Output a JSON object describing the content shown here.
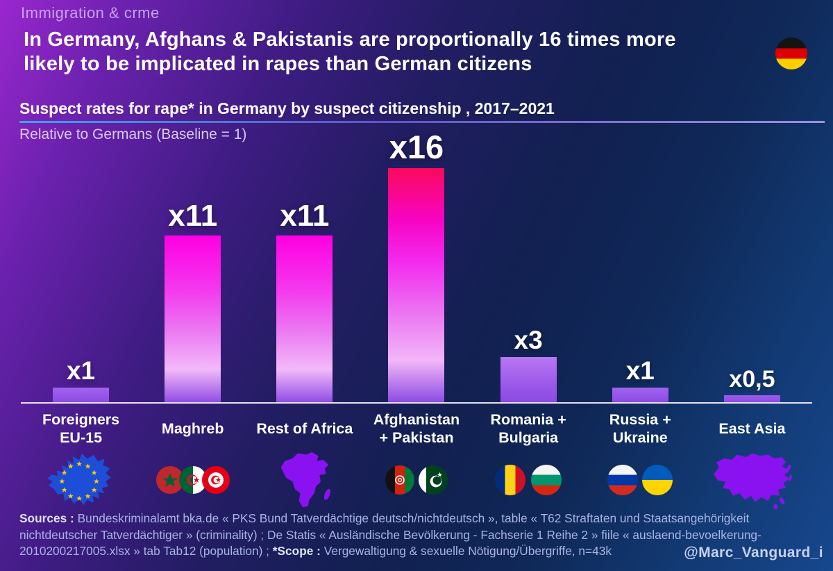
{
  "header": {
    "eyebrow": "Immigration & crme",
    "title_lines": [
      "In Germany, Afghans & Pakistanis are proportionally 16 times more",
      "likely to be implicated in rapes than German citizens"
    ],
    "subtitle": "Suspect rates for rape* in Germany by suspect citizenship , 2017–2021",
    "unit_note": "Relative to Germans (Baseline = 1)",
    "country_icon": "germany-flag-icon"
  },
  "chart_data": {
    "type": "bar",
    "title": "Suspect rates for rape* in Germany by suspect citizenship , 2017–2021",
    "ylabel": "Relative to Germans (Baseline = 1)",
    "baseline": 1,
    "ylim": [
      0,
      16
    ],
    "grid": false,
    "legend": false,
    "categories": [
      "Foreigners EU-15",
      "Maghreb",
      "Rest of Africa",
      "Afghanistan + Pakistan",
      "Romania + Bulgaria",
      "Russia + Ukraine",
      "East Asia"
    ],
    "values": [
      1,
      11,
      11,
      16,
      3,
      1,
      0.5
    ],
    "value_labels": [
      "x1",
      "x11",
      "x11",
      "x16",
      "x3",
      "x1",
      "x0,5"
    ],
    "bar_color_scale": {
      "high": "#fb0a5c",
      "mid": "#f803c8",
      "low": "#8a4ae2"
    },
    "columns": [
      {
        "category_lines": [
          "Foreigners",
          "EU-15"
        ],
        "value": 1,
        "value_label": "x1",
        "bar_gradient": [
          "#a263f0 0%",
          "#8a4ae2 100%"
        ],
        "icons": [
          "eu-map-icon"
        ]
      },
      {
        "category_lines": [
          "Maghreb",
          ""
        ],
        "value": 11,
        "value_label": "x11",
        "bar_gradient": [
          "#fe00e2 0%",
          "#f437ee 32%",
          "#eb7cf2 58%",
          "#f3b9f9 80%",
          "#8f4be4 100%"
        ],
        "icons": [
          "morocco-flag-icon",
          "algeria-flag-icon",
          "tunisia-flag-icon"
        ]
      },
      {
        "category_lines": [
          "Rest of Africa",
          ""
        ],
        "value": 11,
        "value_label": "x11",
        "bar_gradient": [
          "#fe00e2 0%",
          "#f437ee 32%",
          "#eb7cf2 58%",
          "#f3b9f9 80%",
          "#8f4be4 100%"
        ],
        "icons": [
          "africa-map-icon"
        ]
      },
      {
        "category_lines": [
          "Afghanistan",
          "+ Pakistan"
        ],
        "value": 16,
        "value_label": "x16",
        "bar_gradient": [
          "#fb0a5c 0%",
          "#f704c4 22%",
          "#f32aee 40%",
          "#ec76f2 62%",
          "#f2b6f8 82%",
          "#8a4ae2 100%"
        ],
        "icons": [
          "afghanistan-flag-icon",
          "pakistan-flag-icon"
        ]
      },
      {
        "category_lines": [
          "Romania +",
          "Bulgaria"
        ],
        "value": 3,
        "value_label": "x3",
        "bar_gradient": [
          "#b877f2 0%",
          "#9e5bea 55%",
          "#8a4ae2 100%"
        ],
        "icons": [
          "romania-flag-icon",
          "bulgaria-flag-icon"
        ]
      },
      {
        "category_lines": [
          "Russia +",
          "Ukraine"
        ],
        "value": 1,
        "value_label": "x1",
        "bar_gradient": [
          "#a263f0 0%",
          "#8a4ae2 100%"
        ],
        "icons": [
          "russia-flag-icon",
          "ukraine-flag-icon"
        ]
      },
      {
        "category_lines": [
          "East Asia",
          ""
        ],
        "value": 0.5,
        "value_label": "x0,5",
        "bar_gradient": [
          "#9c5cec 0%",
          "#8a4ae2 100%"
        ],
        "icons": [
          "asia-map-icon"
        ]
      }
    ]
  },
  "footer": {
    "lines": [
      [
        {
          "text": "Sources : ",
          "bold": true
        },
        {
          "text": "Bundeskriminalamt bka.de « PKS Bund Tatverdächtige deutsch/nichtdeutsch », table « T62 Straftaten und Staatsangehörigkeit",
          "bold": false
        }
      ],
      [
        {
          "text": "nichtdeutscher Tatverdächtiger » (criminality) ; De Statis « Ausländische Bevölkerung - Fachserie 1 Reihe 2 » fiile « auslaend-bevoelkerung-",
          "bold": false
        }
      ],
      [
        {
          "text": "2010200217005.xlsx » tab Tab12 (population) ; ",
          "bold": false
        },
        {
          "text": "*Scope :",
          "bold": true
        },
        {
          "text": " Vergewaltigung & sexuelle Nötigung/Übergriffe, n=43k",
          "bold": false
        }
      ]
    ],
    "handle": "@Marc_Vanguard_i"
  }
}
